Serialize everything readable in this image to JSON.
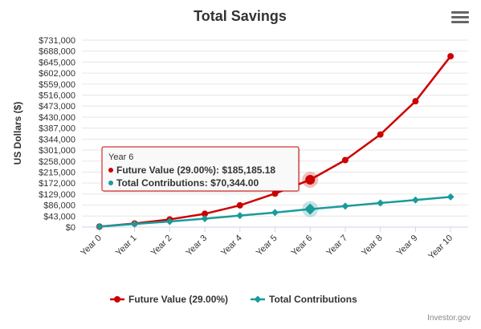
{
  "chart_data": {
    "type": "line",
    "title": "Total Savings",
    "ylabel": "US Dollars ($)",
    "xlabel": "",
    "categories": [
      "Year 0",
      "Year 1",
      "Year 2",
      "Year 3",
      "Year 4",
      "Year 5",
      "Year 6",
      "Year 7",
      "Year 8",
      "Year 9",
      "Year 10"
    ],
    "ylim": [
      0,
      731000
    ],
    "yticks": [
      0,
      43000,
      86000,
      129000,
      172000,
      215000,
      258000,
      301000,
      344000,
      387000,
      430000,
      473000,
      516000,
      559000,
      602000,
      645000,
      688000,
      731000
    ],
    "ytick_labels": [
      "$0",
      "$43,000",
      "$86,000",
      "$129,000",
      "$172,000",
      "$215,000",
      "$258,000",
      "$301,000",
      "$344,000",
      "$387,000",
      "$430,000",
      "$473,000",
      "$516,000",
      "$559,000",
      "$602,000",
      "$645,000",
      "$688,000",
      "$731,000"
    ],
    "grid": true,
    "legend": "bottom",
    "series": [
      {
        "name": "Future Value (29.00%)",
        "color": "#cc0000",
        "marker": "circle",
        "values": [
          2000,
          14000,
          30000,
          52000,
          85000,
          131000,
          185185.18,
          262000,
          362000,
          492000,
          668000
        ]
      },
      {
        "name": "Total Contributions",
        "color": "#1a9b9b",
        "marker": "diamond",
        "values": [
          2000,
          12000,
          22000,
          33000,
          45000,
          57000,
          70344,
          82000,
          94000,
          106000,
          118000
        ]
      }
    ],
    "tooltip": {
      "header": "Year 6",
      "lines": [
        {
          "label": "Future Value (29.00%): ",
          "value": "$185,185.18",
          "color": "#cc0000"
        },
        {
          "label": "Total Contributions: ",
          "value": "$70,344.00",
          "color": "#1a9b9b"
        }
      ],
      "highlight_index": 6
    },
    "credit": "Investor.gov"
  },
  "menu": {
    "icon": "hamburger-menu-icon"
  }
}
